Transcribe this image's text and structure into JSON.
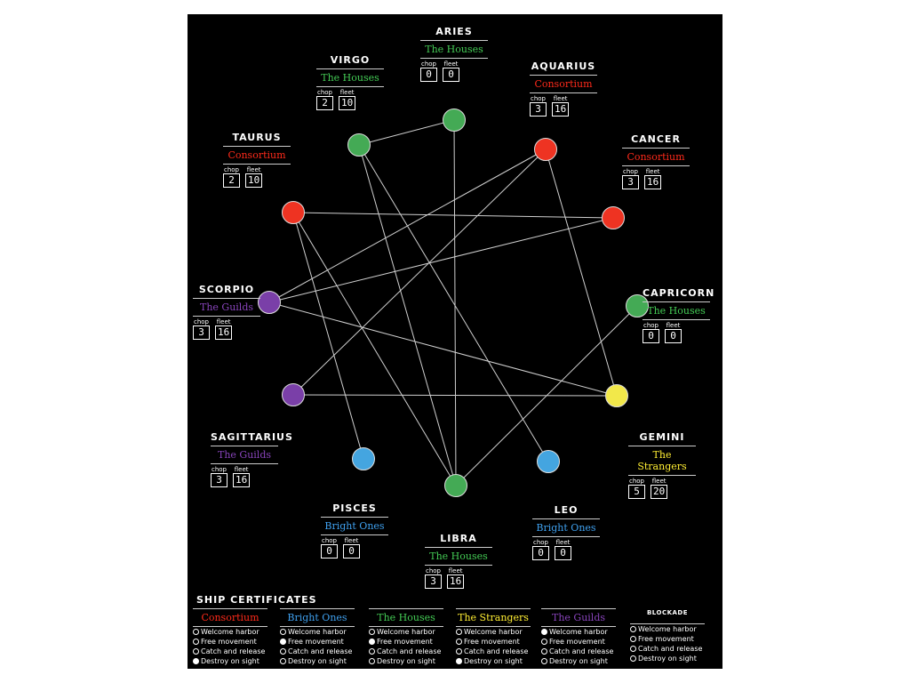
{
  "colors": {
    "Consortium": "#ee3322",
    "The Houses": "#44aa55",
    "The Guilds": "#7a3fa8",
    "Bright Ones": "#44a5e0",
    "The Strangers": "#f2e84a",
    "text_Consortium": "#ff2a1a",
    "text_The Houses": "#44cc55",
    "text_The Guilds": "#8844bb",
    "text_Bright Ones": "#3fa0ee",
    "text_The Strangers": "#ffee33"
  },
  "labels": {
    "chop": "chop",
    "fleet": "fleet"
  },
  "signs": [
    {
      "id": "aries",
      "name": "ARIES",
      "faction": "The Houses",
      "chop": "0",
      "fleet": "0"
    },
    {
      "id": "aquarius",
      "name": "AQUARIUS",
      "faction": "Consortium",
      "chop": "3",
      "fleet": "16"
    },
    {
      "id": "cancer",
      "name": "CANCER",
      "faction": "Consortium",
      "chop": "3",
      "fleet": "16"
    },
    {
      "id": "capricorn",
      "name": "CAPRICORN",
      "faction": "The Houses",
      "chop": "0",
      "fleet": "0"
    },
    {
      "id": "gemini",
      "name": "GEMINI",
      "faction": "The Strangers",
      "chop": "5",
      "fleet": "20"
    },
    {
      "id": "leo",
      "name": "LEO",
      "faction": "Bright Ones",
      "chop": "0",
      "fleet": "0"
    },
    {
      "id": "libra",
      "name": "LIBRA",
      "faction": "The Houses",
      "chop": "3",
      "fleet": "16"
    },
    {
      "id": "pisces",
      "name": "PISCES",
      "faction": "Bright Ones",
      "chop": "0",
      "fleet": "0"
    },
    {
      "id": "sagittarius",
      "name": "SAGITTARIUS",
      "faction": "The Guilds",
      "chop": "3",
      "fleet": "16"
    },
    {
      "id": "scorpio",
      "name": "SCORPIO",
      "faction": "The Guilds",
      "chop": "3",
      "fleet": "16"
    },
    {
      "id": "taurus",
      "name": "TAURUS",
      "faction": "Consortium",
      "chop": "2",
      "fleet": "10"
    },
    {
      "id": "virgo",
      "name": "VIRGO",
      "faction": "The Houses",
      "chop": "2",
      "fleet": "10"
    }
  ],
  "links": [
    [
      "virgo",
      "aries"
    ],
    [
      "aries",
      "libra"
    ],
    [
      "virgo",
      "leo"
    ],
    [
      "taurus",
      "cancer"
    ],
    [
      "taurus",
      "pisces"
    ],
    [
      "aquarius",
      "scorpio"
    ],
    [
      "aquarius",
      "gemini"
    ],
    [
      "scorpio",
      "cancer"
    ],
    [
      "scorpio",
      "gemini"
    ],
    [
      "sagittarius",
      "aquarius"
    ],
    [
      "sagittarius",
      "gemini"
    ],
    [
      "libra",
      "capricorn"
    ],
    [
      "virgo",
      "libra"
    ],
    [
      "taurus",
      "libra"
    ]
  ],
  "certificates": {
    "title": "SHIP CERTIFICATES",
    "options": [
      "Welcome harbor",
      "Free movement",
      "Catch and release",
      "Destroy on sight"
    ],
    "columns": [
      {
        "name": "Consortium",
        "selected": 3
      },
      {
        "name": "Bright Ones",
        "selected": 1
      },
      {
        "name": "The Houses",
        "selected": 1
      },
      {
        "name": "The Strangers",
        "selected": 3
      },
      {
        "name": "The Guilds",
        "selected": 0
      },
      {
        "name": "BLOCKADE",
        "selected": -1
      }
    ]
  }
}
